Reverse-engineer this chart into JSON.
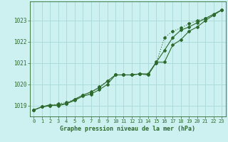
{
  "title": "Graphe pression niveau de la mer (hPa)",
  "background_color": "#cdf0f0",
  "grid_color": "#a8d8d8",
  "line_color": "#2d6a2d",
  "xlim": [
    -0.5,
    23.5
  ],
  "ylim": [
    1018.5,
    1023.9
  ],
  "yticks": [
    1019,
    1020,
    1021,
    1022,
    1023
  ],
  "xticks": [
    0,
    1,
    2,
    3,
    4,
    5,
    6,
    7,
    8,
    9,
    10,
    11,
    12,
    13,
    14,
    15,
    16,
    17,
    18,
    19,
    20,
    21,
    22,
    23
  ],
  "line1": [
    1018.8,
    1018.95,
    1019.0,
    1019.05,
    1019.1,
    1019.25,
    1019.45,
    1019.55,
    1019.75,
    1020.0,
    1020.45,
    1020.45,
    1020.45,
    1020.5,
    1020.45,
    1021.05,
    1021.05,
    1021.85,
    1022.1,
    1022.5,
    1022.7,
    1023.0,
    1023.25,
    1023.5
  ],
  "line2": [
    1018.8,
    1018.95,
    1019.0,
    1019.1,
    1019.15,
    1019.3,
    1019.5,
    1019.6,
    1019.9,
    1020.15,
    1020.45,
    1020.45,
    1020.45,
    1020.5,
    1020.45,
    1021.0,
    1022.2,
    1022.5,
    1022.65,
    1022.85,
    1023.0,
    1023.1,
    1023.25,
    1023.5
  ],
  "line3": [
    1018.8,
    1018.95,
    1019.05,
    1019.0,
    1019.1,
    1019.3,
    1019.5,
    1019.65,
    1019.85,
    1020.15,
    1020.45,
    1020.45,
    1020.45,
    1020.5,
    1020.5,
    1021.05,
    1021.6,
    1022.2,
    1022.55,
    1022.7,
    1022.9,
    1023.1,
    1023.3,
    1023.5
  ]
}
